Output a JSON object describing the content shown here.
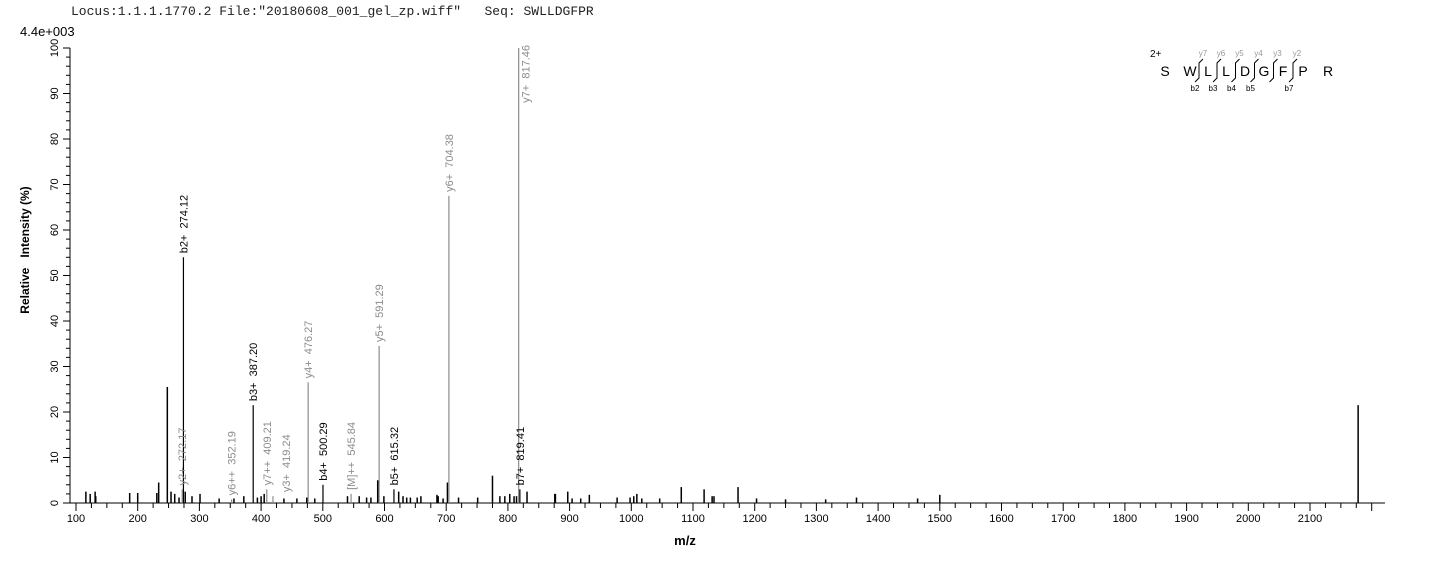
{
  "header": {
    "locus": "Locus:1.1.1.1770.2",
    "file": "File:\"20180608_001_gel_zp.wiff\"",
    "seq": "Seq: SWLLDGFPR"
  },
  "chart_data": {
    "type": "bar",
    "subtype": "mass-spectrum",
    "max_intensity_label": "4.4e+003",
    "xlabel": "m/z",
    "ylabel": "Relative   Intensity (%)",
    "xlim": [
      90,
      2210
    ],
    "ylim": [
      0,
      100
    ],
    "xticks": [
      100,
      200,
      300,
      400,
      500,
      600,
      700,
      800,
      900,
      1000,
      1100,
      1200,
      1300,
      1400,
      1500,
      1600,
      1700,
      1800,
      1900,
      2000,
      2100
    ],
    "yticks": [
      0,
      10,
      20,
      30,
      40,
      50,
      60,
      70,
      80,
      90,
      100
    ],
    "grid": false,
    "colors": {
      "b_ion": "#000000",
      "y_ion": "#8c8c8c",
      "peak": "#000000"
    },
    "peaks": [
      {
        "mz": 116,
        "i": 2.5
      },
      {
        "mz": 123,
        "i": 2
      },
      {
        "mz": 131,
        "i": 2.5
      },
      {
        "mz": 132,
        "i": 1.5
      },
      {
        "mz": 187,
        "i": 2.2
      },
      {
        "mz": 200,
        "i": 2.2
      },
      {
        "mz": 231,
        "i": 2.2
      },
      {
        "mz": 234,
        "i": 4.5
      },
      {
        "mz": 248,
        "i": 25.5
      },
      {
        "mz": 254,
        "i": 2.5
      },
      {
        "mz": 260,
        "i": 2
      },
      {
        "mz": 267,
        "i": 1.2
      },
      {
        "mz": 272.17,
        "i": 3,
        "label": "y2+  272.17",
        "ion": "y"
      },
      {
        "mz": 274.12,
        "i": 54,
        "label": "b2+  274.12",
        "ion": "b"
      },
      {
        "mz": 277,
        "i": 2.5
      },
      {
        "mz": 288,
        "i": 1.5
      },
      {
        "mz": 301,
        "i": 2
      },
      {
        "mz": 332,
        "i": 1
      },
      {
        "mz": 352.19,
        "i": 0.8,
        "label": "y6++  352.19",
        "ion": "y"
      },
      {
        "mz": 356,
        "i": 1
      },
      {
        "mz": 372,
        "i": 1.5
      },
      {
        "mz": 387.2,
        "i": 21.5,
        "label": "b3+  387.20",
        "ion": "b"
      },
      {
        "mz": 394,
        "i": 1.2
      },
      {
        "mz": 400,
        "i": 1.5
      },
      {
        "mz": 405,
        "i": 2
      },
      {
        "mz": 409.21,
        "i": 3,
        "label": "y7++  409.21",
        "ion": "y"
      },
      {
        "mz": 419.24,
        "i": 1.5,
        "label": "y3+  419.24",
        "ion": "y"
      },
      {
        "mz": 437,
        "i": 1
      },
      {
        "mz": 458,
        "i": 1
      },
      {
        "mz": 474,
        "i": 1.2
      },
      {
        "mz": 476.27,
        "i": 26.5,
        "label": "y4+  476.27",
        "ion": "y"
      },
      {
        "mz": 487,
        "i": 1
      },
      {
        "mz": 500.29,
        "i": 4,
        "label": "b4+  500.29",
        "ion": "b"
      },
      {
        "mz": 540,
        "i": 1.5
      },
      {
        "mz": 545.84,
        "i": 2,
        "label": "[M]++  545.84",
        "ion": "y"
      },
      {
        "mz": 559,
        "i": 1.5
      },
      {
        "mz": 571,
        "i": 1.2
      },
      {
        "mz": 578,
        "i": 1.2
      },
      {
        "mz": 589,
        "i": 5
      },
      {
        "mz": 591.29,
        "i": 34.5,
        "label": "y5+  591.29",
        "ion": "y"
      },
      {
        "mz": 599,
        "i": 1.5
      },
      {
        "mz": 615.32,
        "i": 3,
        "label": "b5+  615.32",
        "ion": "b"
      },
      {
        "mz": 623,
        "i": 2.5
      },
      {
        "mz": 630,
        "i": 1.5
      },
      {
        "mz": 636,
        "i": 1.2
      },
      {
        "mz": 642,
        "i": 1.2
      },
      {
        "mz": 653,
        "i": 1.2
      },
      {
        "mz": 659,
        "i": 1.5
      },
      {
        "mz": 685,
        "i": 1.8
      },
      {
        "mz": 687,
        "i": 1.5
      },
      {
        "mz": 695,
        "i": 1
      },
      {
        "mz": 702,
        "i": 4.5
      },
      {
        "mz": 704.38,
        "i": 67.5,
        "label": "y6+  704.38",
        "ion": "y"
      },
      {
        "mz": 720,
        "i": 1.2
      },
      {
        "mz": 751,
        "i": 1.2
      },
      {
        "mz": 775,
        "i": 6
      },
      {
        "mz": 787,
        "i": 1.5
      },
      {
        "mz": 795,
        "i": 1.5
      },
      {
        "mz": 803,
        "i": 2
      },
      {
        "mz": 810,
        "i": 1.5
      },
      {
        "mz": 814,
        "i": 1.5
      },
      {
        "mz": 817.46,
        "i": 100,
        "label": "y7+  817.46",
        "ion": "y"
      },
      {
        "mz": 819.41,
        "i": 3,
        "label": "b7+  819.41",
        "ion": "b"
      },
      {
        "mz": 831,
        "i": 2.5
      },
      {
        "mz": 876,
        "i": 2
      },
      {
        "mz": 877,
        "i": 2
      },
      {
        "mz": 897,
        "i": 2.5
      },
      {
        "mz": 904,
        "i": 1
      },
      {
        "mz": 918,
        "i": 1
      },
      {
        "mz": 932,
        "i": 1.8
      },
      {
        "mz": 977,
        "i": 1.2
      },
      {
        "mz": 998,
        "i": 1.2
      },
      {
        "mz": 1004,
        "i": 1.5
      },
      {
        "mz": 1009,
        "i": 2
      },
      {
        "mz": 1017,
        "i": 1
      },
      {
        "mz": 1046,
        "i": 1
      },
      {
        "mz": 1081,
        "i": 3.5
      },
      {
        "mz": 1118,
        "i": 3
      },
      {
        "mz": 1131,
        "i": 1.5
      },
      {
        "mz": 1134,
        "i": 1.5
      },
      {
        "mz": 1173,
        "i": 3.5
      },
      {
        "mz": 1203,
        "i": 1
      },
      {
        "mz": 1250,
        "i": 0.8
      },
      {
        "mz": 1315,
        "i": 0.8
      },
      {
        "mz": 1365,
        "i": 1.2
      },
      {
        "mz": 1464,
        "i": 1
      },
      {
        "mz": 1500,
        "i": 1.8
      },
      {
        "mz": 2178,
        "i": 21.5
      }
    ]
  },
  "sequence": {
    "charge": "2+",
    "residues": [
      "S",
      "W",
      "L",
      "L",
      "D",
      "G",
      "F",
      "P",
      "R"
    ],
    "cleavages": [
      {
        "after": 1,
        "y": "y7",
        "b": "b2"
      },
      {
        "after": 2,
        "y": "y6",
        "b": "b3"
      },
      {
        "after": 3,
        "y": "y5",
        "b": "b4"
      },
      {
        "after": 4,
        "y": "y4",
        "b": "b5"
      },
      {
        "after": 5,
        "y": "y3",
        "b": ""
      },
      {
        "after": 6,
        "y": "y2",
        "b": "b7"
      }
    ]
  }
}
